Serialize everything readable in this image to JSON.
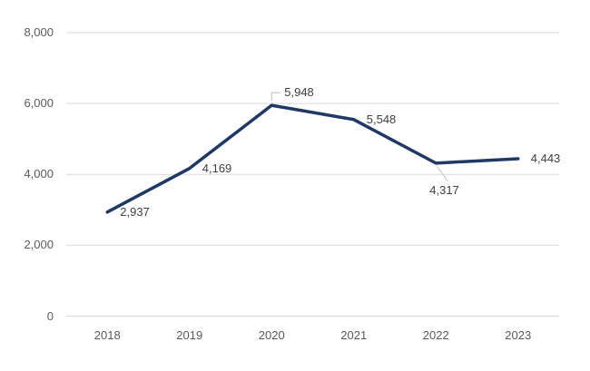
{
  "chart_data": {
    "type": "line",
    "categories": [
      "2018",
      "2019",
      "2020",
      "2021",
      "2022",
      "2023"
    ],
    "values": [
      2937,
      4169,
      5948,
      5548,
      4317,
      4443
    ],
    "data_labels": [
      "2,937",
      "4,169",
      "5,948",
      "5,548",
      "4,317",
      "4,443"
    ],
    "label_placements": [
      "right",
      "right",
      "callout-above",
      "right",
      "callout-below",
      "right"
    ],
    "y_axis": {
      "tick_values": [
        0,
        2000,
        4000,
        6000,
        8000
      ],
      "tick_labels": [
        "0",
        "2,000",
        "4,000",
        "6,000",
        "8,000"
      ]
    },
    "ylim": [
      0,
      8000
    ],
    "grid": true,
    "legend": "none",
    "colors": {
      "line": "#1f3864",
      "gridline": "#d9d9d9",
      "axis_label": "#595959",
      "data_label": "#404040",
      "leader_line": "#bfbfbf",
      "background": "#ffffff"
    }
  }
}
